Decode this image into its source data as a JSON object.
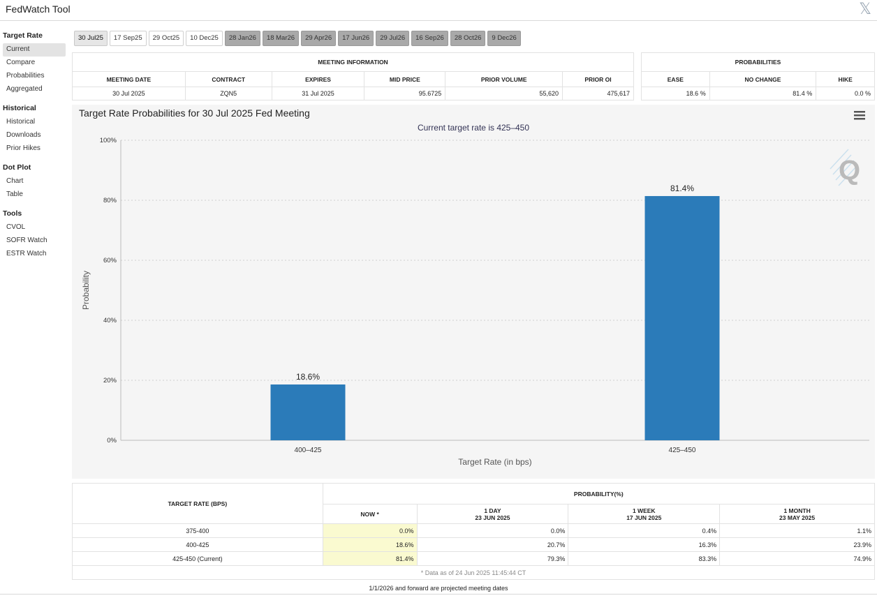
{
  "app": {
    "title": "FedWatch Tool"
  },
  "sidebar": {
    "sections": [
      {
        "heading": "Target Rate",
        "items": [
          "Current",
          "Compare",
          "Probabilities",
          "Aggregated"
        ]
      },
      {
        "heading": "Historical",
        "items": [
          "Historical",
          "Downloads",
          "Prior Hikes"
        ]
      },
      {
        "heading": "Dot Plot",
        "items": [
          "Chart",
          "Table"
        ]
      },
      {
        "heading": "Tools",
        "items": [
          "CVOL",
          "SOFR Watch",
          "ESTR Watch"
        ]
      }
    ],
    "active_item": "Current"
  },
  "tabs": [
    {
      "label": "30 Jul25",
      "state": "selected"
    },
    {
      "label": "17 Sep25",
      "state": "normal"
    },
    {
      "label": "29 Oct25",
      "state": "normal"
    },
    {
      "label": "10 Dec25",
      "state": "normal"
    },
    {
      "label": "28 Jan26",
      "state": "future"
    },
    {
      "label": "18 Mar26",
      "state": "future"
    },
    {
      "label": "29 Apr26",
      "state": "future"
    },
    {
      "label": "17 Jun26",
      "state": "future"
    },
    {
      "label": "29 Jul26",
      "state": "future"
    },
    {
      "label": "16 Sep26",
      "state": "future"
    },
    {
      "label": "28 Oct26",
      "state": "future"
    },
    {
      "label": "9 Dec26",
      "state": "future"
    }
  ],
  "meeting_info": {
    "heading": "MEETING INFORMATION",
    "columns": [
      "MEETING DATE",
      "CONTRACT",
      "EXPIRES",
      "MID PRICE",
      "PRIOR VOLUME",
      "PRIOR OI"
    ],
    "values": [
      "30 Jul 2025",
      "ZQN5",
      "31 Jul 2025",
      "95.6725",
      "55,620",
      "475,617"
    ]
  },
  "probabilities": {
    "heading": "PROBABILITIES",
    "columns": [
      "EASE",
      "NO CHANGE",
      "HIKE"
    ],
    "values": [
      "18.6 %",
      "81.4 %",
      "0.0 %"
    ]
  },
  "chart_data": {
    "type": "bar",
    "title": "Target Rate Probabilities for 30 Jul 2025 Fed Meeting",
    "subtitle": "Current target rate is 425–450",
    "xlabel": "Target Rate (in bps)",
    "ylabel": "Probability",
    "categories": [
      "400–425",
      "425–450"
    ],
    "values": [
      18.6,
      81.4
    ],
    "data_labels": [
      "18.6%",
      "81.4%"
    ],
    "ylim": [
      0,
      100
    ],
    "yticks": [
      0,
      20,
      40,
      60,
      80,
      100
    ],
    "ytick_labels": [
      "0%",
      "20%",
      "40%",
      "60%",
      "80%",
      "100%"
    ],
    "grid": true,
    "bar_color": "#2b7bb9"
  },
  "history_table": {
    "rate_header": "TARGET RATE (BPS)",
    "prob_header": "PROBABILITY(%)",
    "columns": [
      {
        "line1": "NOW *",
        "line2": ""
      },
      {
        "line1": "1 DAY",
        "line2": "23 JUN 2025"
      },
      {
        "line1": "1 WEEK",
        "line2": "17 JUN 2025"
      },
      {
        "line1": "1 MONTH",
        "line2": "23 MAY 2025"
      }
    ],
    "rows": [
      {
        "rate": "375-400",
        "values": [
          "0.0%",
          "0.0%",
          "0.4%",
          "1.1%"
        ]
      },
      {
        "rate": "400-425",
        "values": [
          "18.6%",
          "20.7%",
          "16.3%",
          "23.9%"
        ]
      },
      {
        "rate": "425-450 (Current)",
        "values": [
          "81.4%",
          "79.3%",
          "83.3%",
          "74.9%"
        ]
      }
    ],
    "note": "* Data as of 24 Jun 2025 11:45:44 CT"
  },
  "footer": {
    "note": "1/1/2026 and forward are projected meeting dates"
  }
}
